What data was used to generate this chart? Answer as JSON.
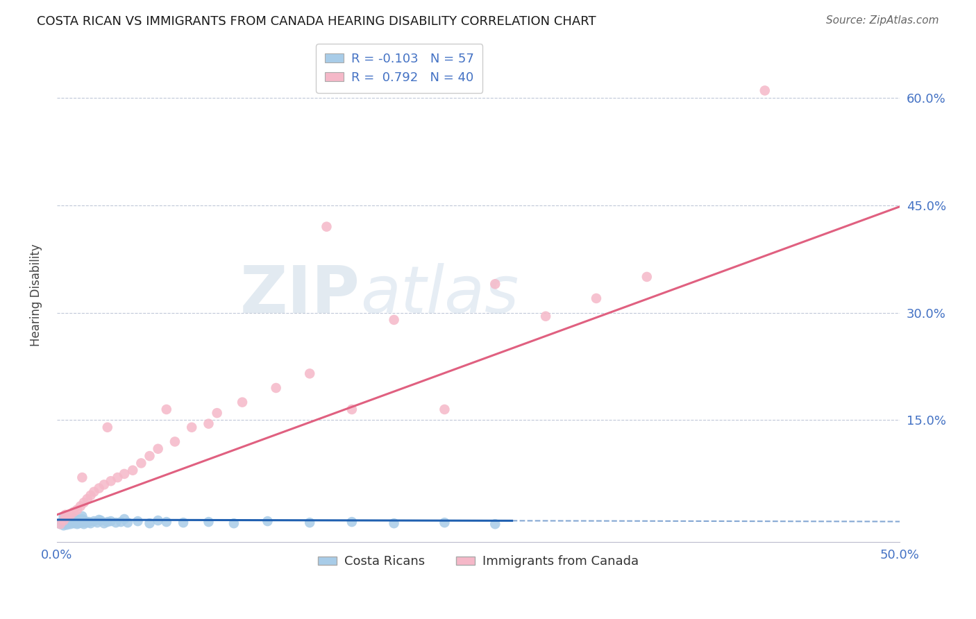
{
  "title": "COSTA RICAN VS IMMIGRANTS FROM CANADA HEARING DISABILITY CORRELATION CHART",
  "source": "Source: ZipAtlas.com",
  "ylabel": "Hearing Disability",
  "xlim": [
    0.0,
    0.5
  ],
  "ylim": [
    -0.02,
    0.67
  ],
  "ytick_vals": [
    0.0,
    0.15,
    0.3,
    0.45,
    0.6
  ],
  "ytick_labels": [
    "",
    "15.0%",
    "30.0%",
    "45.0%",
    "60.0%"
  ],
  "xtick_vals": [
    0.0,
    0.1,
    0.2,
    0.3,
    0.4,
    0.5
  ],
  "xtick_labels": [
    "0.0%",
    "",
    "",
    "",
    "",
    "50.0%"
  ],
  "legend_r_blue": "-0.103",
  "legend_n_blue": "57",
  "legend_r_pink": "0.792",
  "legend_n_pink": "40",
  "legend_labels": [
    "Costa Ricans",
    "Immigrants from Canada"
  ],
  "blue_color": "#a8cce8",
  "pink_color": "#f5b8c8",
  "blue_line_color": "#2060b0",
  "pink_line_color": "#e06080",
  "grid_color": "#c0c8d8",
  "title_color": "#1a1a1a",
  "source_color": "#666666",
  "tick_color": "#4472c4",
  "ylabel_color": "#444444",
  "background_color": "#ffffff",
  "blue_x": [
    0.002,
    0.003,
    0.004,
    0.005,
    0.005,
    0.006,
    0.006,
    0.007,
    0.007,
    0.008,
    0.008,
    0.009,
    0.009,
    0.01,
    0.01,
    0.011,
    0.011,
    0.012,
    0.012,
    0.013,
    0.013,
    0.014,
    0.015,
    0.015,
    0.016,
    0.017,
    0.018,
    0.019,
    0.02,
    0.022,
    0.024,
    0.026,
    0.028,
    0.03,
    0.032,
    0.035,
    0.038,
    0.042,
    0.048,
    0.055,
    0.065,
    0.075,
    0.09,
    0.105,
    0.125,
    0.15,
    0.175,
    0.2,
    0.23,
    0.26,
    0.004,
    0.007,
    0.01,
    0.015,
    0.025,
    0.04,
    0.06
  ],
  "blue_y": [
    0.005,
    0.008,
    0.003,
    0.01,
    0.006,
    0.004,
    0.009,
    0.007,
    0.012,
    0.005,
    0.011,
    0.008,
    0.013,
    0.006,
    0.01,
    0.007,
    0.009,
    0.005,
    0.011,
    0.008,
    0.006,
    0.01,
    0.007,
    0.012,
    0.005,
    0.009,
    0.007,
    0.008,
    0.006,
    0.009,
    0.007,
    0.01,
    0.006,
    0.008,
    0.009,
    0.007,
    0.008,
    0.007,
    0.009,
    0.006,
    0.008,
    0.007,
    0.008,
    0.006,
    0.009,
    0.007,
    0.008,
    0.006,
    0.007,
    0.005,
    0.015,
    0.014,
    0.013,
    0.016,
    0.011,
    0.012,
    0.01
  ],
  "pink_x": [
    0.002,
    0.004,
    0.006,
    0.008,
    0.01,
    0.012,
    0.014,
    0.016,
    0.018,
    0.02,
    0.022,
    0.025,
    0.028,
    0.032,
    0.036,
    0.04,
    0.045,
    0.05,
    0.055,
    0.06,
    0.07,
    0.08,
    0.095,
    0.11,
    0.13,
    0.15,
    0.175,
    0.2,
    0.23,
    0.26,
    0.29,
    0.32,
    0.35,
    0.005,
    0.015,
    0.03,
    0.065,
    0.09,
    0.16,
    0.42
  ],
  "pink_y": [
    0.005,
    0.01,
    0.015,
    0.018,
    0.022,
    0.025,
    0.03,
    0.035,
    0.04,
    0.045,
    0.05,
    0.055,
    0.06,
    0.065,
    0.07,
    0.075,
    0.08,
    0.09,
    0.1,
    0.11,
    0.12,
    0.14,
    0.16,
    0.175,
    0.195,
    0.215,
    0.165,
    0.29,
    0.165,
    0.34,
    0.295,
    0.32,
    0.35,
    0.018,
    0.07,
    0.14,
    0.165,
    0.145,
    0.42,
    0.61
  ],
  "blue_line_x0": 0.0,
  "blue_line_x1_solid": 0.27,
  "blue_line_x2_dash": 0.5,
  "blue_line_y0": 0.011,
  "blue_line_slope": -0.005,
  "pink_line_x0": 0.0,
  "pink_line_x1": 0.5,
  "pink_line_y0": 0.018,
  "pink_line_slope": 0.86
}
